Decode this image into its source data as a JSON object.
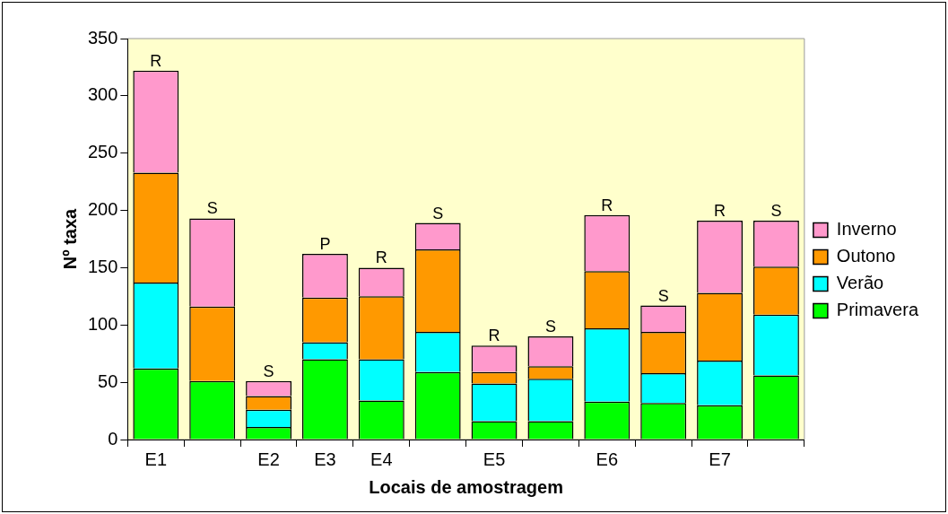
{
  "chart_data": {
    "type": "bar",
    "stacked": true,
    "xlabel": "Locais de amostragem",
    "ylabel": "Nº taxa",
    "categories": [
      "E1",
      null,
      "E2",
      "E3",
      "E4",
      null,
      "E5",
      null,
      "E6",
      null,
      "E7",
      null
    ],
    "ylim": [
      0,
      350
    ],
    "yticks": [
      0,
      50,
      100,
      150,
      200,
      250,
      300,
      350
    ],
    "grid": false,
    "legend": "right",
    "series": [
      {
        "name": "Primavera",
        "color": "#00ff00",
        "values": [
          62,
          51,
          11,
          70,
          34,
          59,
          16,
          16,
          33,
          32,
          30,
          56
        ]
      },
      {
        "name": "Verão",
        "color": "#00ffff",
        "values": [
          75,
          0,
          15,
          15,
          36,
          35,
          33,
          37,
          64,
          26,
          39,
          53
        ]
      },
      {
        "name": "Outono",
        "color": "#ff9900",
        "values": [
          96,
          65,
          12,
          39,
          55,
          72,
          10,
          11,
          50,
          36,
          59,
          42
        ]
      },
      {
        "name": "Inverno",
        "color": "#ff99cc",
        "values": [
          89,
          77,
          13,
          38,
          25,
          23,
          23,
          26,
          49,
          23,
          63,
          40
        ],
        "value_labels": [
          "R",
          "S",
          "S",
          "P",
          "R",
          "S",
          "R",
          "S",
          "R",
          "S",
          "R",
          "S"
        ]
      }
    ]
  }
}
